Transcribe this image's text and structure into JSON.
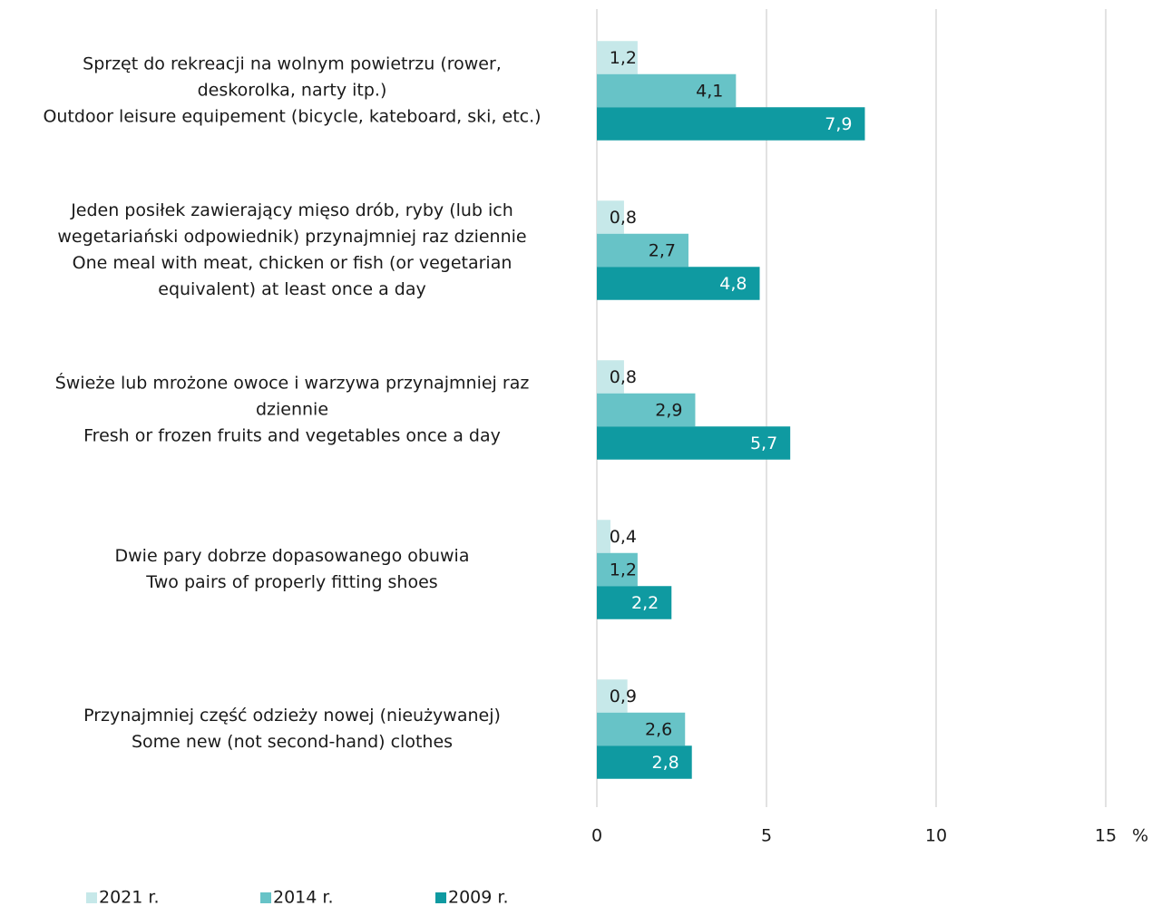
{
  "chart_data": {
    "type": "bar",
    "orientation": "horizontal",
    "categories": [
      [
        "Sprzęt do rekreacji na wolnym powietrzu (rower,",
        "deskorolka, narty itp.)",
        "Outdoor leisure equipement (bicycle, kateboard, ski, etc.)"
      ],
      [
        "Jeden posiłek zawierający mięso drób, ryby (lub ich",
        "wegetariański odpowiednik) przynajmniej raz dziennie",
        "One meal with meat, chicken or fish (or vegetarian",
        "equivalent) at least once a day"
      ],
      [
        "Świeże lub mrożone owoce i warzywa przynajmniej raz",
        "dziennie",
        "Fresh or frozen fruits and vegetables once a day"
      ],
      [
        "Dwie pary dobrze dopasowanego obuwia",
        "Two pairs  of properly fitting shoes"
      ],
      [
        "Przynajmniej część odzieży nowej (nieużywanej)",
        "Some new (not second-hand) clothes"
      ]
    ],
    "series": [
      {
        "name": "2021 r.",
        "color": "#c6e8e9",
        "values": [
          1.2,
          0.8,
          0.8,
          0.4,
          0.9
        ],
        "value_labels": [
          "1,2",
          "0,8",
          "0,8",
          "0,4",
          "0,9"
        ]
      },
      {
        "name": "2014 r.",
        "color": "#67c3c7",
        "values": [
          4.1,
          2.7,
          2.9,
          1.2,
          2.6
        ],
        "value_labels": [
          "4,1",
          "2,7",
          "2,9",
          "1,2",
          "2,6"
        ]
      },
      {
        "name": "2009 r.",
        "color": "#0f9aa1",
        "values": [
          7.9,
          4.8,
          5.7,
          2.2,
          2.8
        ],
        "value_labels": [
          "7,9",
          "4,8",
          "5,7",
          "2,2",
          "2,8"
        ]
      }
    ],
    "xlabel": "%",
    "xlim": [
      0,
      15
    ],
    "xticks": [
      0,
      5,
      10,
      15
    ],
    "grid": true,
    "legend": "bottom"
  }
}
